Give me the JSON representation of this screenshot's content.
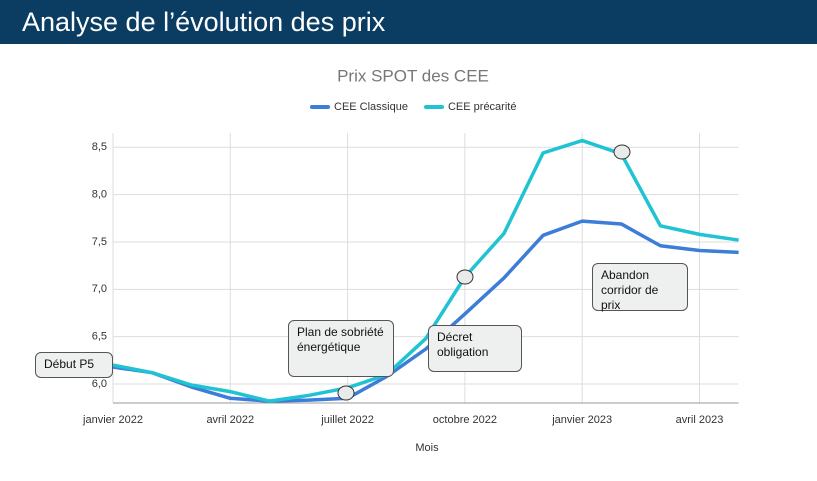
{
  "page_title": "Analyse de l’évolution des prix",
  "chart_data": {
    "type": "line",
    "title": "Prix SPOT des CEE",
    "xlabel": "Mois",
    "x": [
      "2022-01",
      "2022-02",
      "2022-03",
      "2022-04",
      "2022-05",
      "2022-06",
      "2022-07",
      "2022-08",
      "2022-09",
      "2022-10",
      "2022-11",
      "2022-12",
      "2023-01",
      "2023-02",
      "2023-03",
      "2023-04",
      "2023-05"
    ],
    "series": [
      {
        "name": "CEE Classique",
        "color": "#3b7dd8",
        "values": [
          6.18,
          6.12,
          5.97,
          5.85,
          5.82,
          5.83,
          5.85,
          6.08,
          6.37,
          6.74,
          7.12,
          7.57,
          7.72,
          7.69,
          7.46,
          7.41,
          7.39
        ]
      },
      {
        "name": "CEE précarité",
        "color": "#1fc3d3",
        "values": [
          6.2,
          6.12,
          5.99,
          5.92,
          5.82,
          5.88,
          5.96,
          6.1,
          6.48,
          7.13,
          7.59,
          8.44,
          8.57,
          8.43,
          7.67,
          7.58,
          7.52
        ]
      }
    ],
    "ylim": [
      5.8,
      8.65
    ],
    "yticks": [
      {
        "value": 6,
        "label": "6,0"
      },
      {
        "value": 6.5,
        "label": "6,5"
      },
      {
        "value": 7,
        "label": "7,0"
      },
      {
        "value": 7.5,
        "label": "7,5"
      },
      {
        "value": 8,
        "label": "8,0"
      },
      {
        "value": 8.5,
        "label": "8,5"
      }
    ],
    "xticks": [
      {
        "value": "2022-01",
        "label": "janvier 2022"
      },
      {
        "value": "2022-04",
        "label": "avril 2022"
      },
      {
        "value": "2022-07",
        "label": "juillet 2022"
      },
      {
        "value": "2022-10",
        "label": "octobre 2022"
      },
      {
        "value": "2023-01",
        "label": "janvier 2023"
      },
      {
        "value": "2023-04",
        "label": "avril 2023"
      }
    ],
    "grid": true,
    "annotations": [
      "Début P5",
      "Plan de sobriété énergétique",
      "Décret obligation",
      "Abandon corridor de prix"
    ]
  }
}
